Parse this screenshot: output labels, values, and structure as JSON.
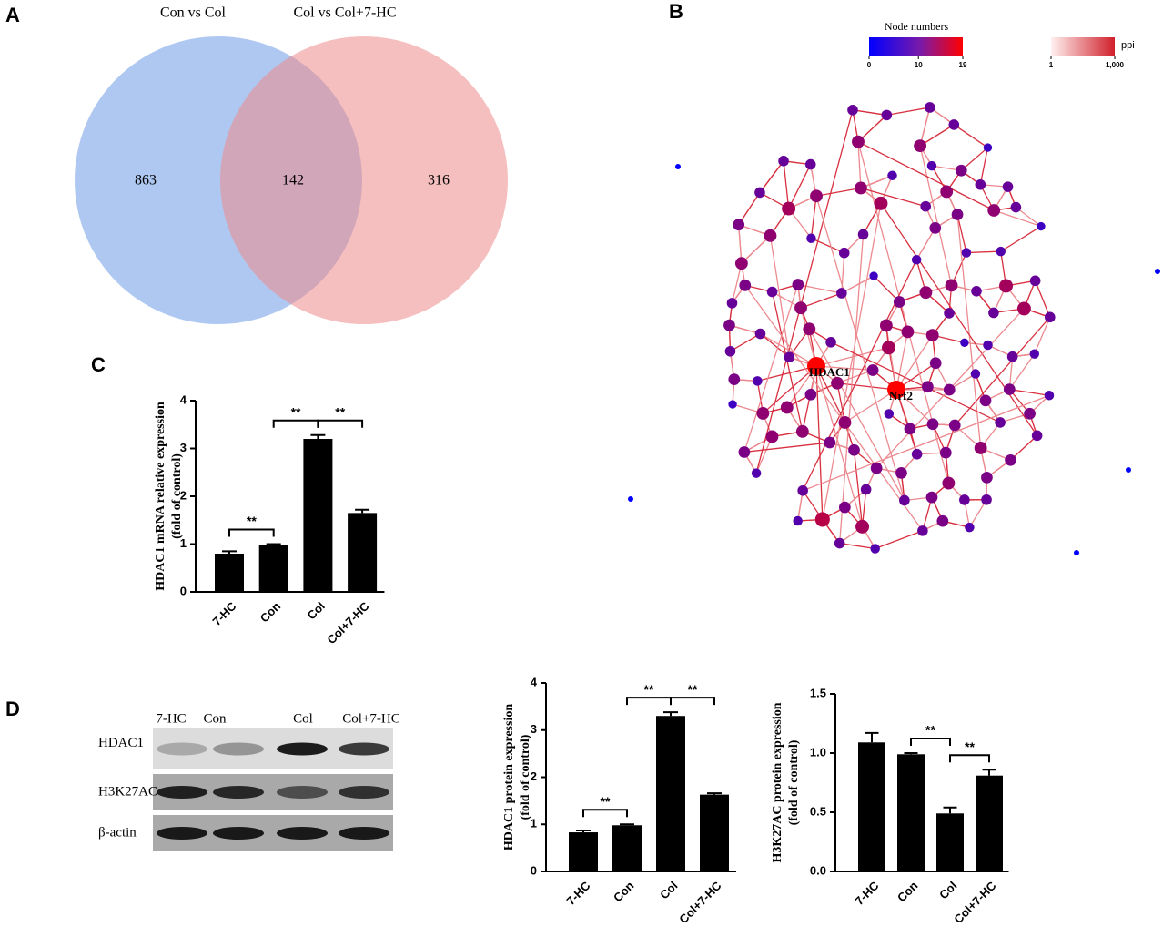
{
  "chart_data": [
    {
      "type": "venn",
      "panel": "A",
      "sets": [
        {
          "name": "Con vs Col",
          "color": "#6d9ae8"
        },
        {
          "name": "Col vs Col+7-HC",
          "color": "#ee8a8a"
        }
      ],
      "values": [
        863,
        142,
        316
      ]
    },
    {
      "type": "network",
      "panel": "B",
      "color_legend": {
        "title": "Node numbers",
        "ticks": [
          0,
          10,
          19
        ]
      },
      "edge_legend": {
        "title": "ppi",
        "ticks": [
          1,
          {
            "value": 1000,
            "label": "1,000"
          }
        ]
      },
      "nodes": [
        {
          "label": "HDAC1"
        },
        {
          "label": "Nrf2"
        }
      ]
    },
    {
      "type": "bar",
      "panel": "C",
      "ylabel": [
        "HDAC1 mRNA relative expression",
        "(fold of control)"
      ],
      "categories": [
        "7-HC",
        "Con",
        "Col",
        "Col+7-HC"
      ],
      "values": [
        0.8,
        0.98,
        3.2,
        1.65
      ],
      "errors": [
        0.05,
        0.02,
        0.08,
        0.07
      ],
      "color": "#000000",
      "ylim": [
        0,
        4
      ],
      "yticks": [
        0,
        1,
        2,
        3,
        4
      ],
      "significance": [
        {
          "pair": [
            0,
            1
          ],
          "label": "**"
        },
        {
          "pair": [
            1,
            2
          ],
          "label": "**"
        },
        {
          "pair": [
            2,
            3
          ],
          "label": "**"
        }
      ]
    },
    {
      "type": "blot",
      "panel": "D",
      "lanes": [
        "7-HC",
        "Con",
        "Col",
        "Col+7-HC"
      ],
      "rows": [
        "HDAC1",
        "H3K27AC",
        "β-actin"
      ]
    },
    {
      "type": "bar",
      "ylabel": [
        "HDAC1 protein expression",
        "(fold of control)"
      ],
      "categories": [
        "7-HC",
        "Con",
        "Col",
        "Col+7-HC"
      ],
      "values": [
        0.83,
        0.98,
        3.3,
        1.63
      ],
      "errors": [
        0.04,
        0.02,
        0.08,
        0.03
      ],
      "color": "#000000",
      "ylim": [
        0,
        4
      ],
      "yticks": [
        0,
        1,
        2,
        3,
        4
      ],
      "significance": [
        {
          "pair": [
            0,
            1
          ],
          "label": "**"
        },
        {
          "pair": [
            1,
            2
          ],
          "label": "**"
        },
        {
          "pair": [
            2,
            3
          ],
          "label": "**"
        }
      ]
    },
    {
      "type": "bar",
      "ylabel": [
        "H3K27AC protein expression",
        "(fold of control)"
      ],
      "categories": [
        "7-HC",
        "Con",
        "Col",
        "Col+7-HC"
      ],
      "values": [
        1.09,
        0.99,
        0.49,
        0.81
      ],
      "errors": [
        0.08,
        0.01,
        0.05,
        0.05
      ],
      "color": "#000000",
      "ylim": [
        0,
        1.5
      ],
      "yticks": [
        {
          "value": 0,
          "label": "0.0"
        },
        {
          "value": 0.5,
          "label": "0.5"
        },
        {
          "value": 1,
          "label": "1.0"
        },
        {
          "value": 1.5,
          "label": "1.5"
        }
      ],
      "significance": [
        {
          "pair": [
            1,
            2
          ],
          "label": "**"
        },
        {
          "pair": [
            2,
            3
          ],
          "label": "**"
        }
      ]
    }
  ]
}
